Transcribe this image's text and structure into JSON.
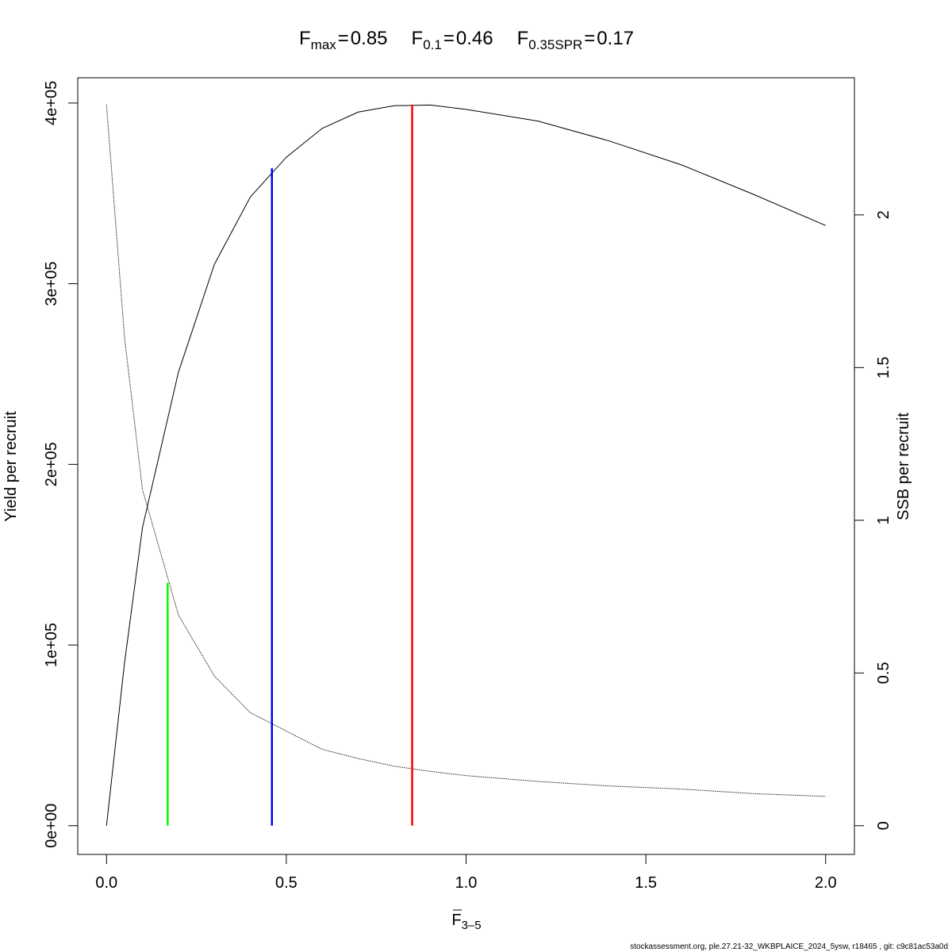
{
  "chart_data": {
    "type": "line",
    "title": {
      "relation": "=",
      "reference_points": [
        {
          "symbol": "F",
          "subscript": "max",
          "value": 0.85,
          "top": 399100,
          "axis": "y",
          "color": "#ff0000"
        },
        {
          "symbol": "F",
          "subscript": "0.1",
          "value": 0.46,
          "top": 363900,
          "axis": "y",
          "color": "#0000ff"
        },
        {
          "symbol": "F",
          "subscript": "0.35SPR",
          "value": 0.17,
          "top": 0.795,
          "axis": "y2",
          "color": "#00ff00"
        }
      ]
    },
    "xlabel": {
      "symbol": "F",
      "subscript": "3–5"
    },
    "ylabel": "Yield per recruit",
    "y2label": "SSB per recruit",
    "footer": "stockassessment.org, ple.27.21-32_WKBPLAICE_2024_5ysw, r18465 , git: c9c81ac53a0d",
    "x": [
      0,
      0.05,
      0.1,
      0.2,
      0.3,
      0.4,
      0.5,
      0.6,
      0.7,
      0.8,
      0.9,
      1.0,
      1.2,
      1.4,
      1.6,
      1.8,
      2.0
    ],
    "series": [
      {
        "color": "#000000",
        "dash": "solid",
        "axis": "y",
        "values": [
          0,
          90000,
          165000,
          251000,
          310700,
          348000,
          370000,
          386000,
          395000,
          398500,
          398900,
          396500,
          390000,
          378900,
          365700,
          349400,
          332200
        ]
      },
      {
        "color": "#000000",
        "dash": "dotted",
        "axis": "y2",
        "values": [
          2.36,
          1.6,
          1.1,
          0.69,
          0.49,
          0.37,
          0.31,
          0.25,
          0.22,
          0.195,
          0.178,
          0.164,
          0.145,
          0.13,
          0.12,
          0.105,
          0.096
        ]
      }
    ],
    "xlim": [
      -0.08,
      2.08
    ],
    "xticks": [
      {
        "value": 0,
        "label": "0.0"
      },
      0.5,
      {
        "value": 1,
        "label": "1.0"
      },
      1.5,
      {
        "value": 2,
        "label": "2.0"
      }
    ],
    "ylim": [
      -15900,
      414000
    ],
    "yticks": [
      {
        "value": 0,
        "label": "0e+00"
      },
      {
        "value": 100000,
        "label": "1e+05"
      },
      {
        "value": 200000,
        "label": "2e+05"
      },
      {
        "value": 300000,
        "label": "3e+05"
      },
      {
        "value": 400000,
        "label": "4e+05"
      }
    ],
    "y2lim": [
      -0.094,
      2.449
    ],
    "y2ticks": [
      0,
      0.5,
      1,
      1.5,
      2
    ]
  }
}
